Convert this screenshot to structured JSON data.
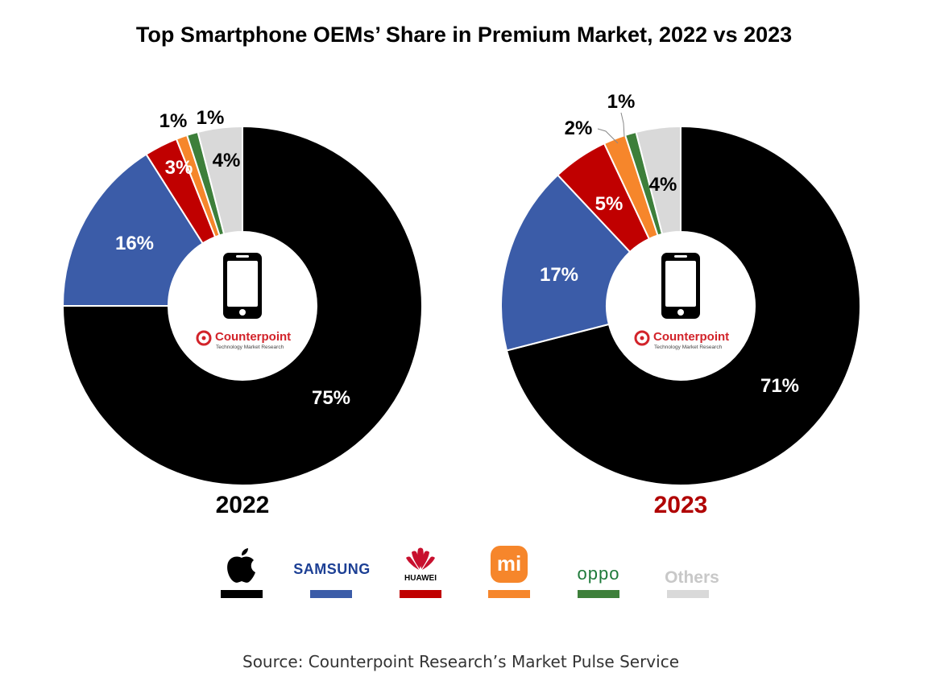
{
  "title": "Top Smartphone OEMs’ Share in Premium Market, 2022 vs 2023",
  "source": "Source: Counterpoint Research’s Market Pulse Service",
  "center_brand": {
    "name": "Counterpoint",
    "tagline": "Technology Market Research",
    "icon": "smartphone-icon"
  },
  "colors": {
    "apple": "#000000",
    "samsung": "#3b5ca8",
    "huawei": "#c00000",
    "xiaomi": "#f6862b",
    "oppo": "#3d7f3a",
    "others": "#d9d9d9",
    "year2023": "#b00000",
    "counterpoint": "#d2232a"
  },
  "legend": [
    {
      "key": "apple",
      "label": "Apple",
      "icon": "apple-logo-icon"
    },
    {
      "key": "samsung",
      "label": "SAMSUNG",
      "icon": "samsung-logo"
    },
    {
      "key": "huawei",
      "label": "HUAWEI",
      "icon": "huawei-logo-icon"
    },
    {
      "key": "xiaomi",
      "label": "mi",
      "icon": "xiaomi-logo-icon"
    },
    {
      "key": "oppo",
      "label": "oppo",
      "icon": "oppo-logo"
    },
    {
      "key": "others",
      "label": "Others",
      "icon": "others-text"
    }
  ],
  "chart_data": [
    {
      "type": "pie",
      "donut": true,
      "year": "2022",
      "categories": [
        "Apple",
        "Samsung",
        "Huawei",
        "Xiaomi",
        "OPPO",
        "Others"
      ],
      "values": [
        75,
        16,
        3,
        1,
        1,
        4
      ],
      "labels": [
        "75%",
        "16%",
        "3%",
        "1%",
        "1%",
        "4%"
      ]
    },
    {
      "type": "pie",
      "donut": true,
      "year": "2023",
      "categories": [
        "Apple",
        "Samsung",
        "Huawei",
        "Xiaomi",
        "OPPO",
        "Others"
      ],
      "values": [
        71,
        17,
        5,
        2,
        1,
        4
      ],
      "labels": [
        "71%",
        "17%",
        "5%",
        "2%",
        "1%",
        "4%"
      ]
    }
  ]
}
